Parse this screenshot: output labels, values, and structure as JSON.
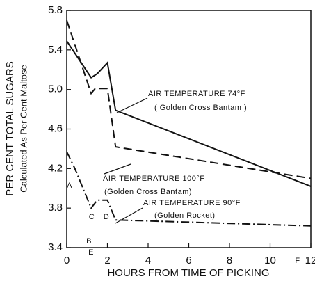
{
  "chart_data": {
    "type": "line",
    "xlabel": "HOURS FROM TIME OF PICKING",
    "ylabel": "PER CENT TOTAL SUGARS",
    "ylabel2": "Calculated As Per Cent Maltose",
    "xlim": [
      0,
      12
    ],
    "xticks": [
      0,
      2,
      4,
      6,
      8,
      10,
      12
    ],
    "ylim": [
      3.4,
      5.8
    ],
    "yticks": [
      3.4,
      3.8,
      4.2,
      4.6,
      {
        "value": 5,
        "label": "5.0"
      },
      5.4,
      5.8
    ],
    "series": [
      {
        "name": "AIR TEMPERATURE 74°F",
        "variety": "( Golden Cross Bantam )",
        "color": "#111111",
        "dash": "none",
        "x": [
          0,
          1.2,
          1.5,
          2,
          2.4,
          12
        ],
        "values": [
          5.49,
          5.12,
          5.16,
          5.27,
          4.79,
          4.02
        ]
      },
      {
        "name": "AIR TEMPERATURE 100°F",
        "variety": "(Golden Cross Bantam)",
        "color": "#111111",
        "dash": "12 6",
        "x": [
          0,
          1.2,
          1.4,
          2,
          2.4,
          12
        ],
        "values": [
          5.7,
          4.96,
          5.01,
          5.01,
          4.42,
          4.1
        ]
      },
      {
        "name": "AIR TEMPERATURE 90°F",
        "variety": "(Golden Rocket)",
        "color": "#111111",
        "dash": "12 4 2 4",
        "x": [
          0,
          0.4,
          1.2,
          1.5,
          2,
          2.4,
          12
        ],
        "values": [
          4.37,
          4.2,
          3.8,
          3.88,
          3.88,
          3.68,
          3.62
        ]
      }
    ],
    "annotations": [
      "A",
      "B",
      "C",
      "D",
      "E",
      "F"
    ]
  }
}
